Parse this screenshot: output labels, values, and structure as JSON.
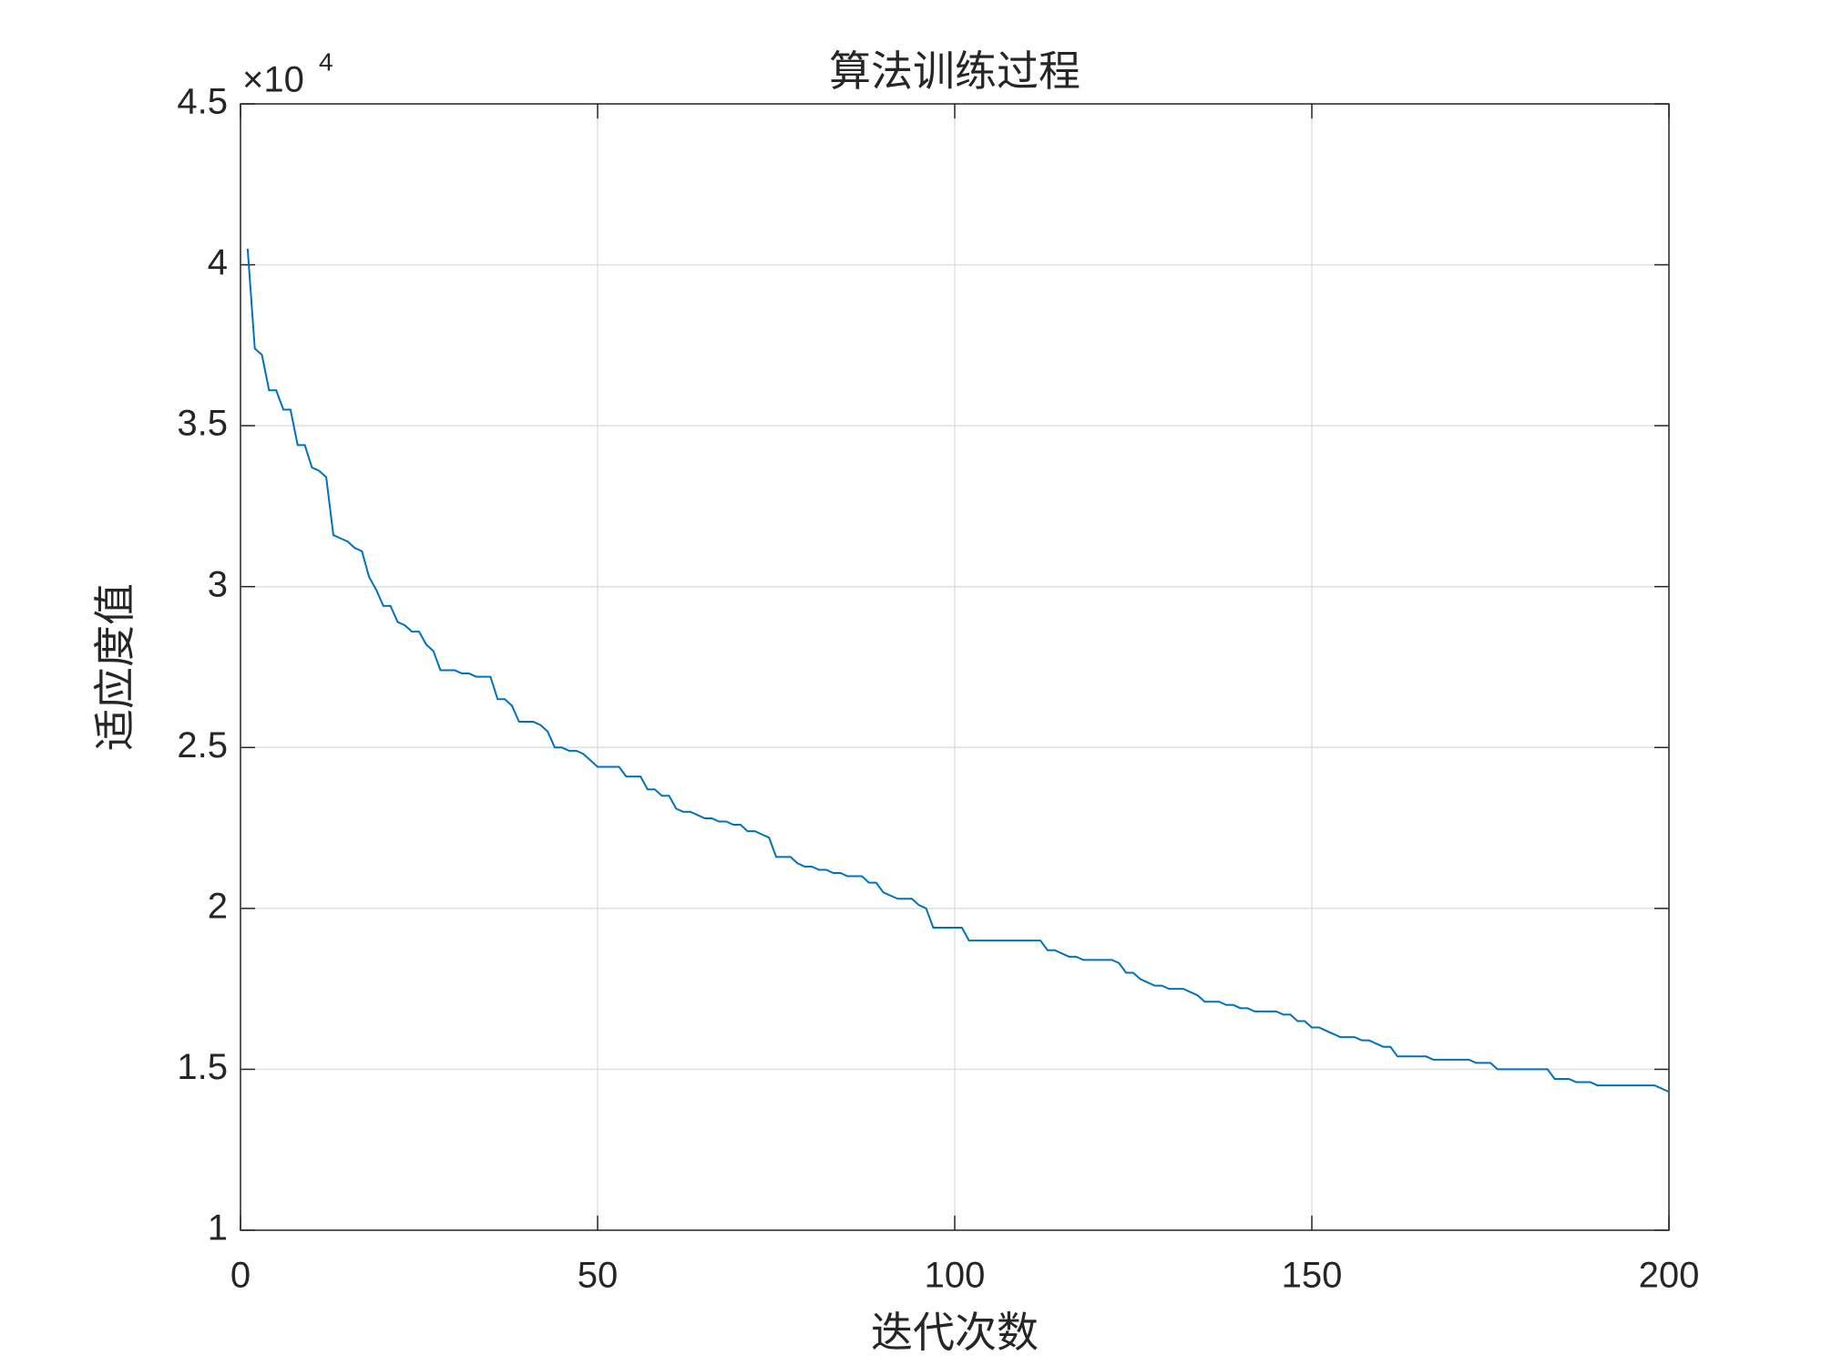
{
  "chart_data": {
    "type": "line",
    "title": "算法训练过程",
    "xlabel": "迭代次数",
    "ylabel": "适应度值",
    "y_exponent_base": "×10",
    "y_exponent": 4,
    "x": [
      1,
      2,
      3,
      4,
      5,
      6,
      7,
      8,
      9,
      10,
      11,
      12,
      13,
      14,
      15,
      16,
      17,
      18,
      19,
      20,
      21,
      22,
      23,
      24,
      25,
      26,
      27,
      28,
      29,
      30,
      31,
      32,
      33,
      34,
      35,
      36,
      37,
      38,
      39,
      40,
      41,
      42,
      43,
      44,
      45,
      46,
      47,
      48,
      49,
      50,
      51,
      52,
      53,
      54,
      55,
      56,
      57,
      58,
      59,
      60,
      61,
      62,
      63,
      64,
      65,
      66,
      67,
      68,
      69,
      70,
      71,
      72,
      73,
      74,
      75,
      76,
      77,
      78,
      79,
      80,
      81,
      82,
      83,
      84,
      85,
      86,
      87,
      88,
      89,
      90,
      91,
      92,
      93,
      94,
      95,
      96,
      97,
      98,
      99,
      100,
      101,
      102,
      103,
      104,
      105,
      106,
      107,
      108,
      109,
      110,
      111,
      112,
      113,
      114,
      115,
      116,
      117,
      118,
      119,
      120,
      121,
      122,
      123,
      124,
      125,
      126,
      127,
      128,
      129,
      130,
      131,
      132,
      133,
      134,
      135,
      136,
      137,
      138,
      139,
      140,
      141,
      142,
      143,
      144,
      145,
      146,
      147,
      148,
      149,
      150,
      151,
      152,
      153,
      154,
      155,
      156,
      157,
      158,
      159,
      160,
      161,
      162,
      163,
      164,
      165,
      166,
      167,
      168,
      169,
      170,
      171,
      172,
      173,
      174,
      175,
      176,
      177,
      178,
      179,
      180,
      181,
      182,
      183,
      184,
      185,
      186,
      187,
      188,
      189,
      190,
      191,
      192,
      193,
      194,
      195,
      196,
      197,
      198,
      199,
      200
    ],
    "values": [
      4.05,
      3.74,
      3.72,
      3.61,
      3.61,
      3.55,
      3.55,
      3.44,
      3.44,
      3.37,
      3.36,
      3.34,
      3.16,
      3.15,
      3.14,
      3.12,
      3.11,
      3.03,
      2.99,
      2.94,
      2.94,
      2.89,
      2.88,
      2.86,
      2.86,
      2.82,
      2.8,
      2.74,
      2.74,
      2.74,
      2.73,
      2.73,
      2.72,
      2.72,
      2.72,
      2.65,
      2.65,
      2.63,
      2.58,
      2.58,
      2.58,
      2.57,
      2.55,
      2.5,
      2.5,
      2.49,
      2.49,
      2.48,
      2.46,
      2.44,
      2.44,
      2.44,
      2.44,
      2.41,
      2.41,
      2.41,
      2.37,
      2.37,
      2.35,
      2.35,
      2.31,
      2.3,
      2.3,
      2.29,
      2.28,
      2.28,
      2.27,
      2.27,
      2.26,
      2.26,
      2.24,
      2.24,
      2.23,
      2.22,
      2.16,
      2.16,
      2.16,
      2.14,
      2.13,
      2.13,
      2.12,
      2.12,
      2.11,
      2.11,
      2.1,
      2.1,
      2.1,
      2.08,
      2.08,
      2.05,
      2.04,
      2.03,
      2.03,
      2.03,
      2.01,
      2.0,
      1.94,
      1.94,
      1.94,
      1.94,
      1.94,
      1.9,
      1.9,
      1.9,
      1.9,
      1.9,
      1.9,
      1.9,
      1.9,
      1.9,
      1.9,
      1.9,
      1.87,
      1.87,
      1.86,
      1.85,
      1.85,
      1.84,
      1.84,
      1.84,
      1.84,
      1.84,
      1.83,
      1.8,
      1.8,
      1.78,
      1.77,
      1.76,
      1.76,
      1.75,
      1.75,
      1.75,
      1.74,
      1.73,
      1.71,
      1.71,
      1.71,
      1.7,
      1.7,
      1.69,
      1.69,
      1.68,
      1.68,
      1.68,
      1.68,
      1.67,
      1.67,
      1.65,
      1.65,
      1.63,
      1.63,
      1.62,
      1.61,
      1.6,
      1.6,
      1.6,
      1.59,
      1.59,
      1.58,
      1.57,
      1.57,
      1.54,
      1.54,
      1.54,
      1.54,
      1.54,
      1.53,
      1.53,
      1.53,
      1.53,
      1.53,
      1.53,
      1.52,
      1.52,
      1.52,
      1.5,
      1.5,
      1.5,
      1.5,
      1.5,
      1.5,
      1.5,
      1.5,
      1.47,
      1.47,
      1.47,
      1.46,
      1.46,
      1.46,
      1.45,
      1.45,
      1.45,
      1.45,
      1.45,
      1.45,
      1.45,
      1.45,
      1.45,
      1.44,
      1.43
    ],
    "color": "#0072bd",
    "xlim": [
      0,
      200
    ],
    "xticks": [
      0,
      50,
      100,
      150,
      200
    ],
    "ylim": [
      1,
      4.5
    ],
    "yticks": [
      1,
      1.5,
      2,
      2.5,
      3,
      3.5,
      4,
      4.5
    ],
    "grid": true
  }
}
